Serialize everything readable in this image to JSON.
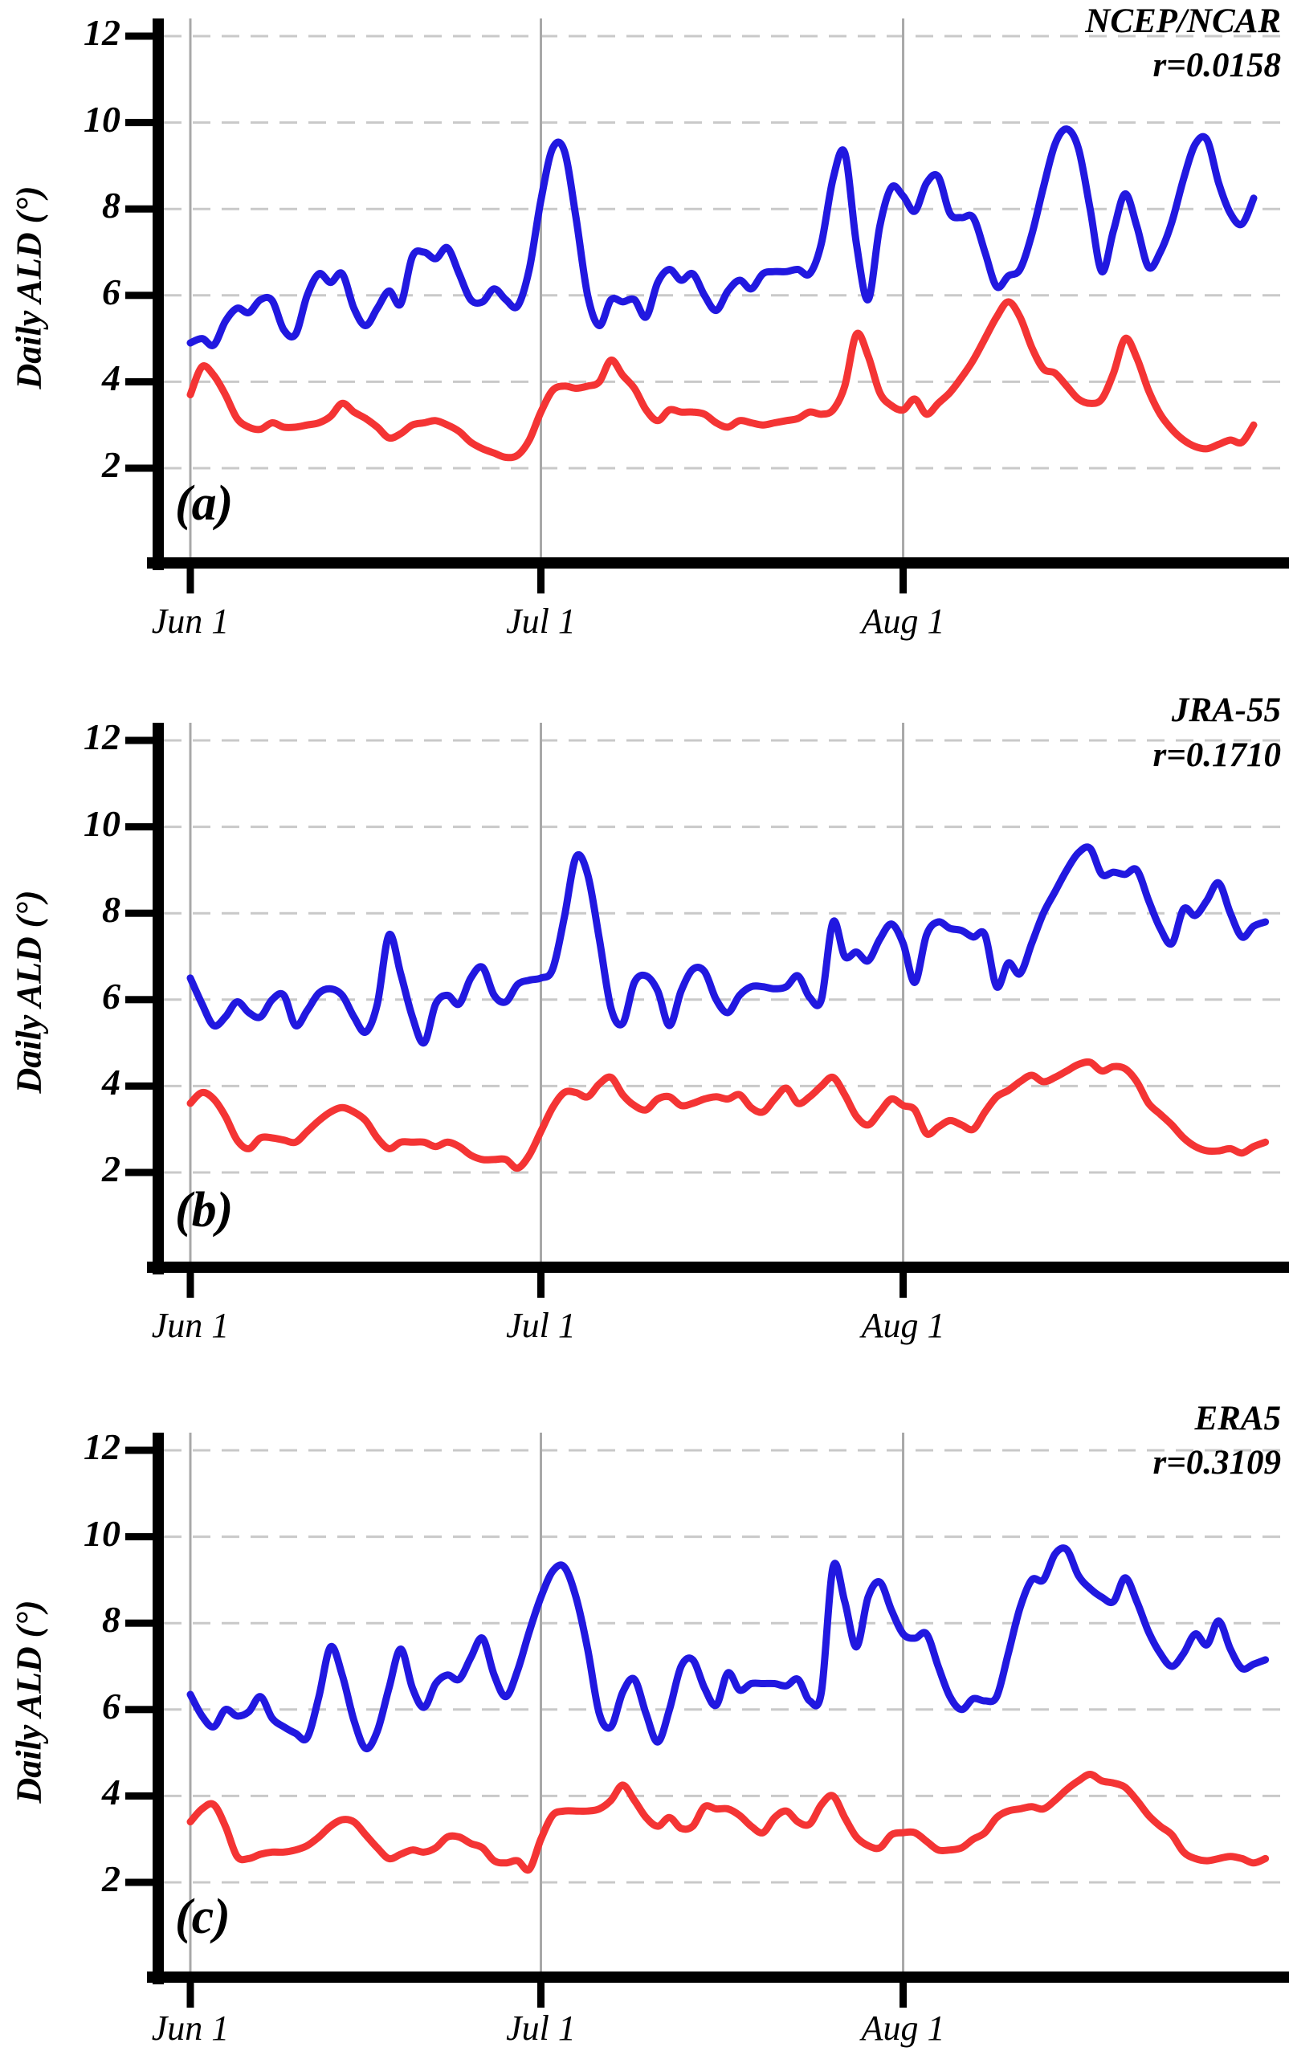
{
  "figure": {
    "y_axis_title": "Daily ALD (°)",
    "background_color": "#ffffff",
    "axis_color": "#000000",
    "h_gridline_color": "#c9c9c9",
    "v_gridline_color": "#a8a8a8"
  },
  "chart_data": [
    {
      "panel_letter": "(a)",
      "title": "NCEP/NCAR",
      "annotation": "r=0.0158",
      "type": "line",
      "ylabel": "Daily ALD (°)",
      "x_tick_labels": [
        "Jun 1",
        "Jul 1",
        "Aug 1"
      ],
      "x_tick_days": [
        0,
        30,
        61
      ],
      "x_unit": "day (Jun 1 = 0)",
      "ylim": [
        0,
        12.4
      ],
      "y_tick_values": [
        2,
        4,
        6,
        8,
        10,
        12
      ],
      "grid": {
        "horizontal": "dashed",
        "vertical": "solid-at-month-starts"
      },
      "legend": "none",
      "series": [
        {
          "name": "blue-series",
          "color": "#2118e0",
          "values": [
            4.9,
            5.0,
            4.85,
            5.4,
            5.7,
            5.6,
            5.9,
            5.88,
            5.2,
            5.1,
            6.0,
            6.5,
            6.3,
            6.5,
            5.7,
            5.3,
            5.7,
            6.1,
            5.8,
            6.9,
            7.0,
            6.85,
            7.1,
            6.5,
            5.9,
            5.85,
            6.15,
            5.9,
            5.75,
            6.6,
            8.2,
            9.4,
            9.35,
            7.8,
            6.0,
            5.3,
            5.9,
            5.85,
            5.9,
            5.5,
            6.3,
            6.6,
            6.35,
            6.5,
            6.0,
            5.65,
            6.1,
            6.35,
            6.15,
            6.5,
            6.55,
            6.55,
            6.6,
            6.5,
            7.2,
            8.7,
            9.3,
            7.2,
            5.9,
            7.6,
            8.5,
            8.3,
            7.95,
            8.6,
            8.75,
            7.9,
            7.8,
            7.8,
            7.0,
            6.2,
            6.45,
            6.6,
            7.4,
            8.5,
            9.5,
            9.85,
            9.4,
            8.0,
            6.55,
            7.5,
            8.35,
            7.6,
            6.65,
            7.0,
            7.7,
            8.7,
            9.5,
            9.6,
            8.6,
            7.9,
            7.65,
            8.25
          ]
        },
        {
          "name": "red-series",
          "color": "#f43434",
          "values": [
            3.7,
            4.35,
            4.15,
            3.7,
            3.15,
            2.95,
            2.9,
            3.05,
            2.95,
            2.95,
            3.0,
            3.05,
            3.2,
            3.5,
            3.3,
            3.15,
            2.95,
            2.7,
            2.8,
            3.0,
            3.05,
            3.1,
            3.0,
            2.85,
            2.6,
            2.45,
            2.35,
            2.25,
            2.3,
            2.65,
            3.3,
            3.8,
            3.9,
            3.85,
            3.9,
            4.0,
            4.5,
            4.15,
            3.85,
            3.35,
            3.1,
            3.35,
            3.3,
            3.3,
            3.25,
            3.05,
            2.95,
            3.1,
            3.05,
            3.0,
            3.05,
            3.1,
            3.15,
            3.3,
            3.25,
            3.35,
            3.9,
            5.1,
            4.6,
            3.75,
            3.45,
            3.35,
            3.6,
            3.25,
            3.5,
            3.75,
            4.1,
            4.5,
            5.0,
            5.5,
            5.85,
            5.5,
            4.8,
            4.3,
            4.2,
            3.9,
            3.6,
            3.5,
            3.6,
            4.2,
            5.0,
            4.55,
            3.8,
            3.25,
            2.9,
            2.65,
            2.5,
            2.45,
            2.55,
            2.65,
            2.6,
            3.0
          ]
        }
      ]
    },
    {
      "panel_letter": "(b)",
      "title": "JRA-55",
      "annotation": "r=0.1710",
      "type": "line",
      "ylabel": "Daily ALD (°)",
      "x_tick_labels": [
        "Jun 1",
        "Jul 1",
        "Aug 1"
      ],
      "x_tick_days": [
        0,
        30,
        61
      ],
      "x_unit": "day (Jun 1 = 0)",
      "ylim": [
        0,
        12.4
      ],
      "y_tick_values": [
        2,
        4,
        6,
        8,
        10,
        12
      ],
      "grid": {
        "horizontal": "dashed",
        "vertical": "solid-at-month-starts"
      },
      "legend": "none",
      "series": [
        {
          "name": "blue-series",
          "color": "#2118e0",
          "values": [
            6.5,
            5.9,
            5.4,
            5.6,
            5.95,
            5.7,
            5.6,
            6.0,
            6.1,
            5.4,
            5.75,
            6.15,
            6.25,
            6.1,
            5.6,
            5.25,
            5.9,
            7.5,
            6.6,
            5.6,
            5.0,
            5.9,
            6.1,
            5.9,
            6.5,
            6.75,
            6.1,
            5.95,
            6.35,
            6.45,
            6.5,
            6.7,
            7.9,
            9.3,
            8.9,
            7.4,
            5.8,
            5.45,
            6.4,
            6.55,
            6.2,
            5.4,
            6.2,
            6.7,
            6.65,
            6.0,
            5.7,
            6.1,
            6.3,
            6.3,
            6.25,
            6.3,
            6.55,
            6.05,
            6.0,
            7.8,
            7.0,
            7.1,
            6.9,
            7.4,
            7.75,
            7.3,
            6.4,
            7.5,
            7.8,
            7.65,
            7.6,
            7.45,
            7.5,
            6.3,
            6.85,
            6.6,
            7.3,
            8.0,
            8.5,
            9.0,
            9.4,
            9.5,
            8.9,
            8.95,
            8.9,
            9.0,
            8.3,
            7.65,
            7.3,
            8.1,
            7.95,
            8.3,
            8.7,
            8.0,
            7.45,
            7.7,
            7.8
          ]
        },
        {
          "name": "red-series",
          "color": "#f43434",
          "values": [
            3.6,
            3.85,
            3.7,
            3.3,
            2.75,
            2.55,
            2.8,
            2.8,
            2.75,
            2.7,
            2.95,
            3.2,
            3.4,
            3.5,
            3.4,
            3.2,
            2.8,
            2.55,
            2.7,
            2.7,
            2.7,
            2.6,
            2.7,
            2.6,
            2.4,
            2.3,
            2.3,
            2.3,
            2.1,
            2.4,
            2.95,
            3.5,
            3.85,
            3.85,
            3.75,
            4.05,
            4.2,
            3.8,
            3.55,
            3.45,
            3.7,
            3.75,
            3.55,
            3.6,
            3.7,
            3.75,
            3.7,
            3.8,
            3.5,
            3.4,
            3.7,
            3.95,
            3.6,
            3.75,
            4.0,
            4.2,
            3.8,
            3.3,
            3.1,
            3.4,
            3.7,
            3.55,
            3.45,
            2.9,
            3.05,
            3.2,
            3.1,
            3.0,
            3.4,
            3.75,
            3.9,
            4.1,
            4.25,
            4.1,
            4.2,
            4.35,
            4.5,
            4.55,
            4.35,
            4.45,
            4.4,
            4.1,
            3.6,
            3.35,
            3.1,
            2.8,
            2.6,
            2.5,
            2.5,
            2.55,
            2.45,
            2.6,
            2.7
          ]
        }
      ]
    },
    {
      "panel_letter": "(c)",
      "title": "ERA5",
      "annotation": "r=0.3109",
      "type": "line",
      "ylabel": "Daily ALD (°)",
      "x_tick_labels": [
        "Jun 1",
        "Jul 1",
        "Aug 1"
      ],
      "x_tick_days": [
        0,
        30,
        61
      ],
      "x_unit": "day (Jun 1 = 0)",
      "ylim": [
        0,
        12.4
      ],
      "y_tick_values": [
        2,
        4,
        6,
        8,
        10,
        12
      ],
      "grid": {
        "horizontal": "dashed",
        "vertical": "solid-at-month-starts"
      },
      "legend": "none",
      "series": [
        {
          "name": "blue-series",
          "color": "#2118e0",
          "values": [
            6.35,
            5.85,
            5.6,
            6.0,
            5.85,
            5.95,
            6.3,
            5.8,
            5.6,
            5.45,
            5.35,
            6.3,
            7.45,
            6.8,
            5.75,
            5.1,
            5.5,
            6.5,
            7.4,
            6.5,
            6.05,
            6.6,
            6.8,
            6.7,
            7.2,
            7.65,
            6.8,
            6.3,
            6.9,
            7.8,
            8.6,
            9.2,
            9.3,
            8.6,
            7.4,
            5.9,
            5.6,
            6.4,
            6.7,
            5.9,
            5.25,
            6.0,
            7.0,
            7.15,
            6.5,
            6.1,
            6.85,
            6.45,
            6.6,
            6.6,
            6.6,
            6.55,
            6.7,
            6.2,
            6.4,
            9.3,
            8.5,
            7.45,
            8.6,
            8.95,
            8.3,
            7.75,
            7.65,
            7.75,
            7.0,
            6.3,
            6.0,
            6.25,
            6.2,
            6.3,
            7.3,
            8.35,
            9.0,
            9.0,
            9.6,
            9.7,
            9.1,
            8.8,
            8.6,
            8.5,
            9.05,
            8.5,
            7.8,
            7.3,
            7.0,
            7.3,
            7.75,
            7.5,
            8.05,
            7.4,
            6.95,
            7.05,
            7.15
          ]
        },
        {
          "name": "red-series",
          "color": "#f43434",
          "values": [
            3.4,
            3.7,
            3.8,
            3.3,
            2.6,
            2.55,
            2.65,
            2.7,
            2.7,
            2.75,
            2.85,
            3.05,
            3.3,
            3.45,
            3.4,
            3.1,
            2.8,
            2.55,
            2.65,
            2.75,
            2.7,
            2.8,
            3.05,
            3.05,
            2.9,
            2.8,
            2.5,
            2.45,
            2.5,
            2.3,
            3.0,
            3.55,
            3.65,
            3.65,
            3.65,
            3.7,
            3.9,
            4.25,
            3.9,
            3.5,
            3.3,
            3.5,
            3.25,
            3.3,
            3.75,
            3.7,
            3.7,
            3.55,
            3.3,
            3.15,
            3.5,
            3.65,
            3.4,
            3.35,
            3.8,
            4.0,
            3.5,
            3.05,
            2.85,
            2.8,
            3.1,
            3.15,
            3.15,
            2.95,
            2.75,
            2.75,
            2.8,
            3.0,
            3.15,
            3.5,
            3.65,
            3.7,
            3.75,
            3.7,
            3.9,
            4.15,
            4.35,
            4.5,
            4.35,
            4.3,
            4.2,
            3.9,
            3.55,
            3.3,
            3.1,
            2.7,
            2.55,
            2.5,
            2.55,
            2.6,
            2.55,
            2.45,
            2.55
          ]
        }
      ]
    }
  ]
}
